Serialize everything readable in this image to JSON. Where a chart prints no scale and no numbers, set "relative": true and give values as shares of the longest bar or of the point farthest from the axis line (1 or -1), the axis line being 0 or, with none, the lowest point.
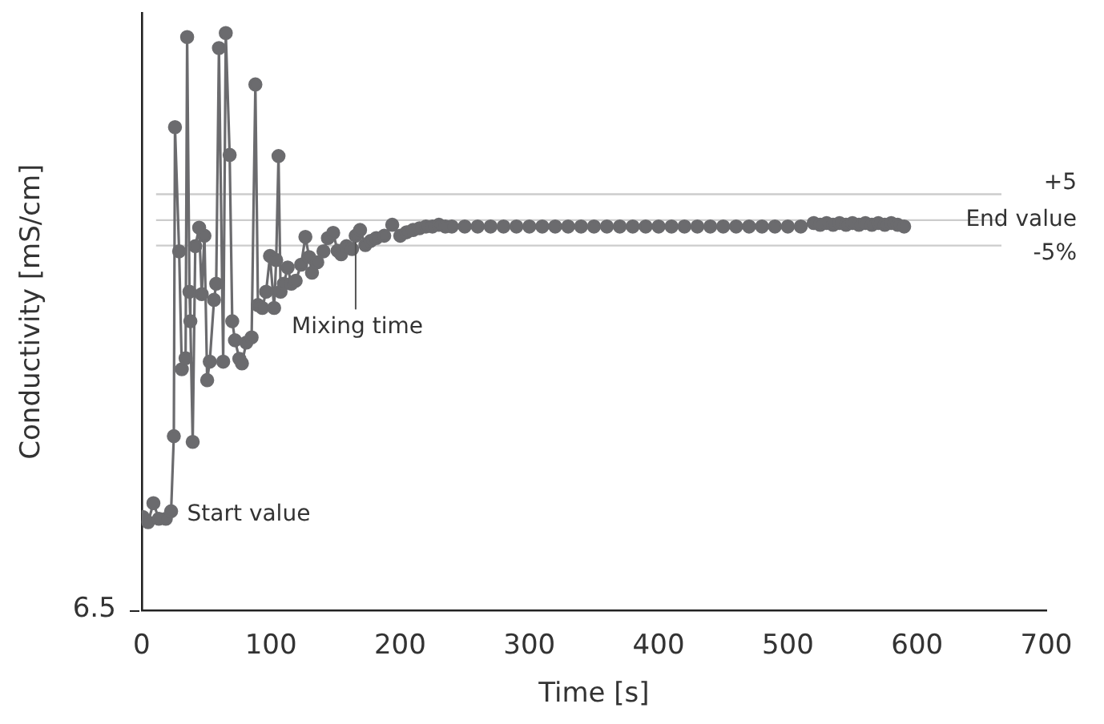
{
  "chart_data": {
    "type": "line",
    "xlabel": "Time [s]",
    "ylabel": "Conductivity [mS/cm]",
    "relative": true,
    "xlim": [
      0,
      700
    ],
    "xticks": [
      0,
      100,
      200,
      300,
      400,
      500,
      600,
      700
    ],
    "marker": "circle",
    "legend": false,
    "grid": false,
    "series": [
      {
        "color": "#6b6b6e",
        "x": [
          0.9,
          5.0,
          9.1,
          13.3,
          18.7,
          22.8,
          24.9,
          25.8,
          29.0,
          31.1,
          34.0,
          35.2,
          37.0,
          37.7,
          39.5,
          41.5,
          44.5,
          46.5,
          48.6,
          50.7,
          52.7,
          56.0,
          57.7,
          59.8,
          63.1,
          65.1,
          68.1,
          70.1,
          72.2,
          75.6,
          77.6,
          81.0,
          85.1,
          88.0,
          90.0,
          93.4,
          96.3,
          99.3,
          102.5,
          104.1,
          105.9,
          107.5,
          110.0,
          113.0,
          115.8,
          119.2,
          123.4,
          126.7,
          129.6,
          131.8,
          135.9,
          140.7,
          144.1,
          148.2,
          151.6,
          154.4,
          158.5,
          162.8,
          165.6,
          169.0,
          173.1,
          177.2,
          181.5,
          187.7,
          193.9,
          200.1,
          205,
          210,
          215,
          220,
          225,
          230,
          235,
          240,
          250,
          260,
          270,
          280,
          290,
          300,
          310,
          320,
          330,
          340,
          350,
          360,
          370,
          380,
          390,
          400,
          410,
          420,
          430,
          440,
          450,
          460,
          470,
          480,
          490,
          500,
          510,
          520,
          525,
          530,
          535,
          540,
          545,
          550,
          555,
          560,
          565,
          570,
          575,
          580,
          585,
          590
        ],
        "values": [
          0.162,
          0.153,
          0.186,
          0.159,
          0.159,
          0.172,
          0.302,
          0.837,
          0.622,
          0.418,
          0.437,
          0.993,
          0.552,
          0.501,
          0.292,
          0.631,
          0.663,
          0.548,
          0.649,
          0.399,
          0.431,
          0.538,
          0.566,
          0.974,
          0.431,
          1,
          0.789,
          0.501,
          0.468,
          0.436,
          0.428,
          0.464,
          0.473,
          0.911,
          0.529,
          0.524,
          0.552,
          0.614,
          0.524,
          0.607,
          0.787,
          0.552,
          0.566,
          0.594,
          0.566,
          0.571,
          0.599,
          0.647,
          0.612,
          0.585,
          0.603,
          0.622,
          0.645,
          0.654,
          0.623,
          0.617,
          0.631,
          0.626,
          0.649,
          0.659,
          0.633,
          0.64,
          0.645,
          0.649,
          0.668,
          0.649,
          0.655,
          0.659,
          0.662,
          0.665,
          0.665,
          0.668,
          0.665,
          0.665,
          0.665,
          0.665,
          0.665,
          0.665,
          0.665,
          0.665,
          0.665,
          0.665,
          0.665,
          0.665,
          0.665,
          0.665,
          0.665,
          0.665,
          0.665,
          0.665,
          0.665,
          0.665,
          0.665,
          0.665,
          0.665,
          0.665,
          0.665,
          0.665,
          0.665,
          0.665,
          0.665,
          0.671,
          0.668,
          0.671,
          0.668,
          0.671,
          0.668,
          0.671,
          0.668,
          0.671,
          0.668,
          0.671,
          0.668,
          0.671,
          0.668,
          0.665
        ]
      }
    ],
    "ref_lines": [
      {
        "axis": "y",
        "value": 0.721,
        "color": "#cccccc"
      },
      {
        "axis": "y",
        "value": 0.676,
        "label": "End value",
        "color": "#cccccc"
      },
      {
        "axis": "y",
        "value": 0.632,
        "color": "#cccccc"
      }
    ],
    "annotations": [
      "+5",
      "-5%",
      {
        "text": "Start value",
        "x": 22.8,
        "y": 0.172
      },
      {
        "text": "Mixing time",
        "x": 165.6,
        "y": 0.649
      },
      "6.5"
    ]
  }
}
